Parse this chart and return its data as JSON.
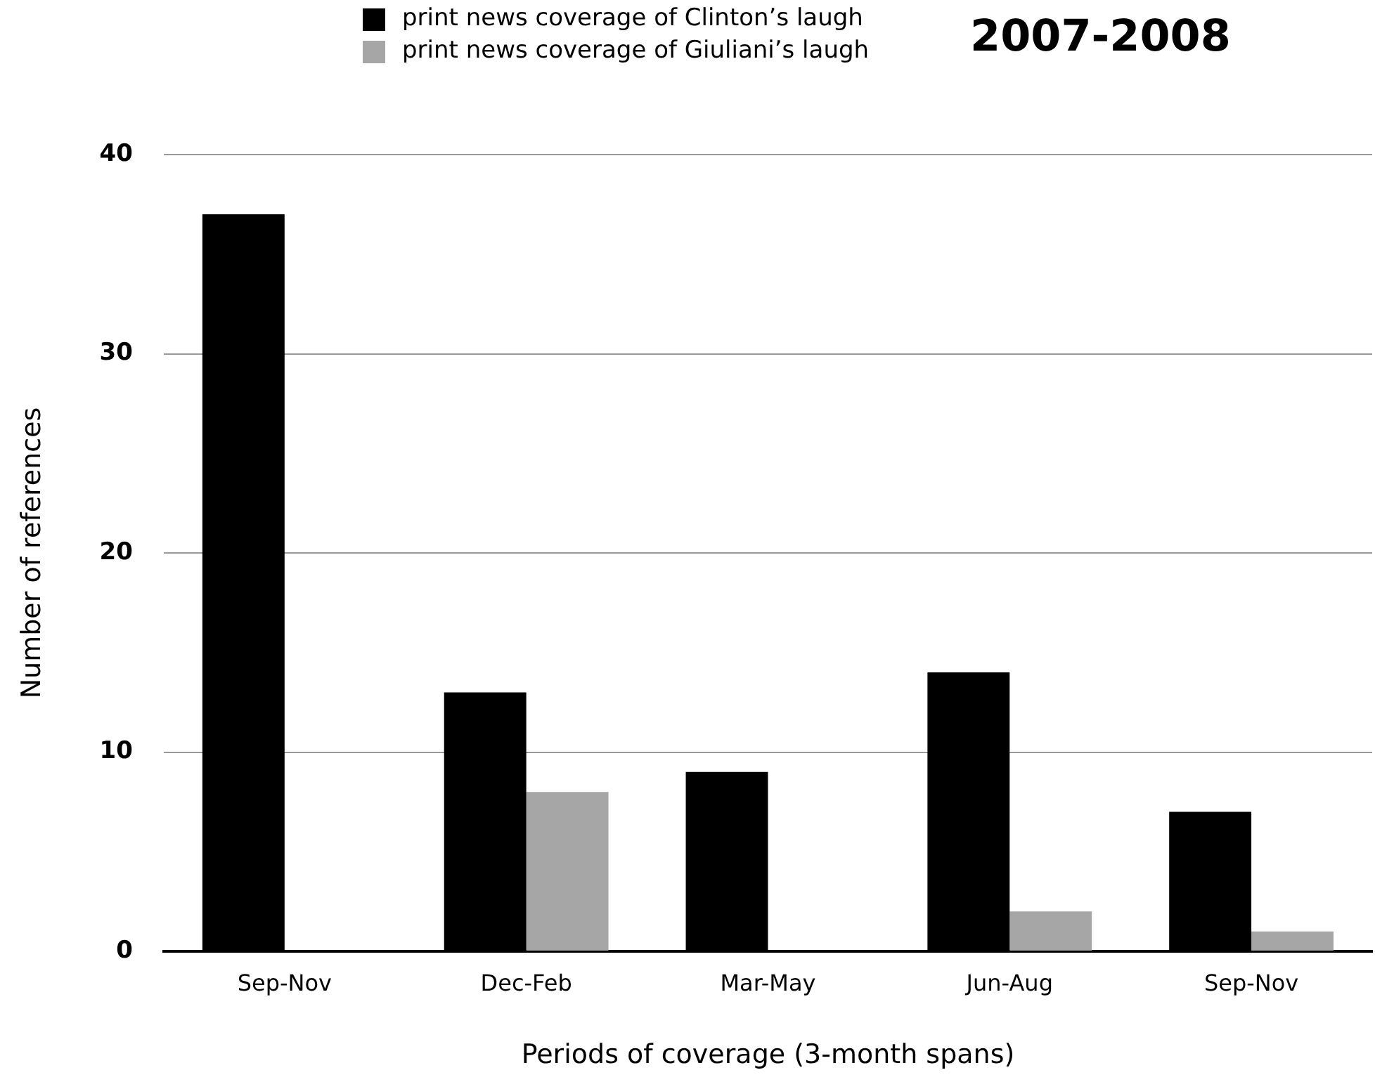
{
  "chart_data": {
    "type": "bar",
    "title": "2007-2008",
    "xlabel": "Periods of coverage (3-month spans)",
    "ylabel": "Number of references",
    "categories": [
      "Sep-Nov",
      "Dec-Feb",
      "Mar-May",
      "Jun-Aug",
      "Sep-Nov"
    ],
    "series": [
      {
        "name": "print news coverage of Clinton’s laugh",
        "color": "#000000",
        "values": [
          37,
          13,
          9,
          14,
          7
        ]
      },
      {
        "name": "print news coverage of Giuliani’s laugh",
        "color": "#a6a6a6",
        "values": [
          0,
          8,
          0,
          2,
          1
        ]
      }
    ],
    "ylim": [
      0,
      40
    ],
    "yticks": [
      0,
      10,
      20,
      30,
      40
    ],
    "grid": "y",
    "legend": "top"
  }
}
